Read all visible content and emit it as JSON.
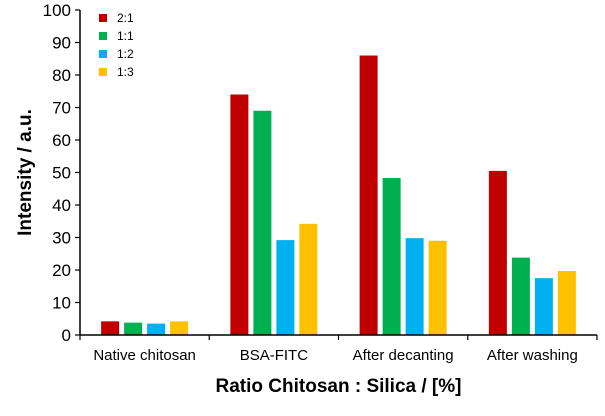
{
  "chart_data": {
    "type": "bar",
    "title": "",
    "xlabel": "Ratio Chitosan : Silica / [%]",
    "ylabel": "Intensity / a.u.",
    "ylim": [
      0,
      100
    ],
    "yticks": [
      0,
      10,
      20,
      30,
      40,
      50,
      60,
      70,
      80,
      90,
      100
    ],
    "categories": [
      "Native chitosan",
      "BSA-FITC",
      "After decanting",
      "After washing"
    ],
    "series": [
      {
        "name": "2:1",
        "color": "#c00000",
        "values": [
          4.2,
          74,
          86,
          50.5
        ]
      },
      {
        "name": "1:1",
        "color": "#00b050",
        "values": [
          3.8,
          69,
          48.3,
          23.8
        ]
      },
      {
        "name": "1:2",
        "color": "#00b0f0",
        "values": [
          3.5,
          29.2,
          29.8,
          17.5
        ]
      },
      {
        "name": "1:3",
        "color": "#ffc000",
        "values": [
          4.2,
          34.2,
          29,
          19.7
        ]
      }
    ],
    "grid": false,
    "legend_position": "top-left"
  }
}
